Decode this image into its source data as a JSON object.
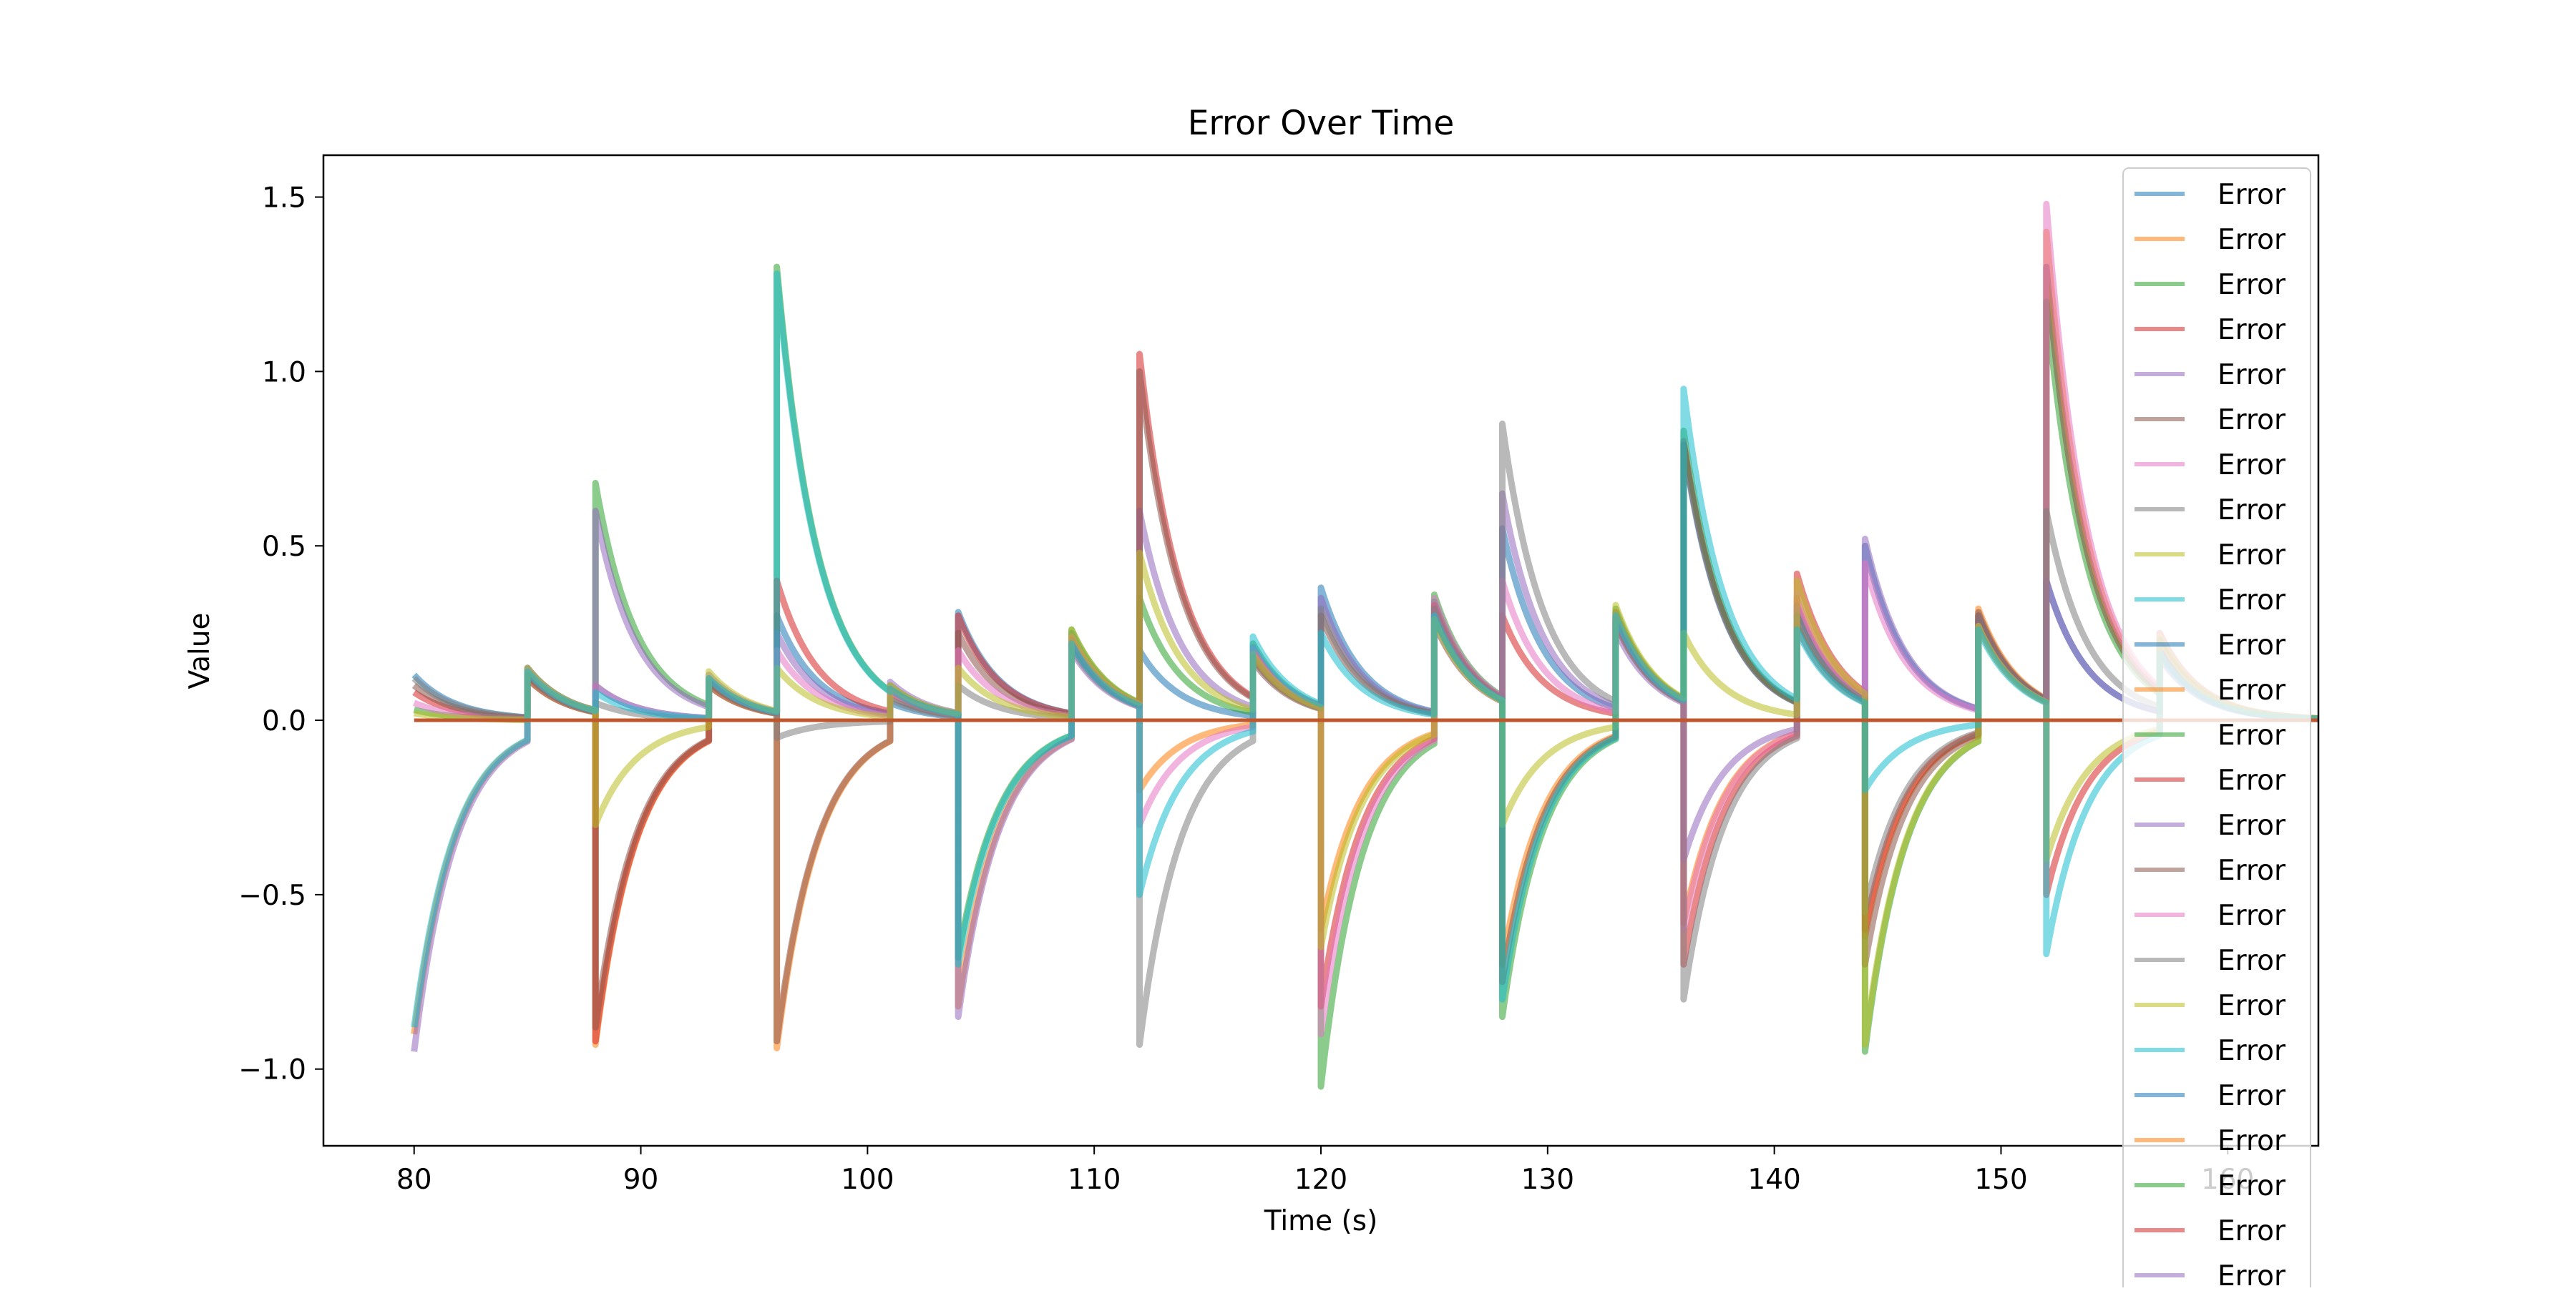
{
  "chart_data": {
    "type": "line",
    "title": "Error Over Time",
    "xlabel": "Time (s)",
    "ylabel": "Value",
    "xlim": [
      76,
      164
    ],
    "ylim": [
      -1.22,
      1.62
    ],
    "xticks": [
      80,
      90,
      100,
      110,
      120,
      130,
      140,
      150,
      160
    ],
    "xtick_labels": [
      "80",
      "90",
      "100",
      "110",
      "120",
      "130",
      "140",
      "150",
      "160"
    ],
    "yticks": [
      -1.0,
      -0.5,
      0.0,
      0.5,
      1.0,
      1.5
    ],
    "ytick_labels": [
      "−1.0",
      "−0.5",
      "0.0",
      "0.5",
      "1.0",
      "1.5"
    ],
    "grid": false,
    "legend_position": "top-right",
    "palette": [
      "#1f77b4",
      "#ff7f0e",
      "#2ca02c",
      "#d62728",
      "#9467bd",
      "#8c564b",
      "#e377c2",
      "#7f7f7f",
      "#bcbd22",
      "#17becf"
    ],
    "legend_entries": [
      "Error",
      "Error",
      "Error",
      "Error",
      "Error",
      "Error",
      "Error",
      "Error",
      "Error",
      "Error",
      "Error",
      "Error",
      "Error",
      "Error",
      "Error",
      "Error",
      "Error",
      "Error",
      "Error",
      "Error",
      "Error",
      "Error",
      "Error",
      "Error",
      "Error"
    ],
    "segment_starts": [
      80,
      85,
      88,
      93,
      96,
      101,
      104,
      109,
      112,
      117,
      120,
      125,
      128,
      133,
      136,
      141,
      144,
      149,
      152,
      157
    ],
    "end_time": 164,
    "decay_rate": 0.55,
    "series": [
      {
        "jumps": [
          0.13,
          0.15,
          0.1,
          0.12,
          0.3,
          0.05,
          0.31,
          0.25,
          0.2,
          0.2,
          0.38,
          0.34,
          0.55,
          0.3,
          0.79,
          0.33,
          0.5,
          0.3,
          0.4,
          0.2
        ]
      },
      {
        "jumps": [
          -0.9,
          0.12,
          -0.93,
          0.1,
          -0.94,
          0.08,
          -0.82,
          0.24,
          -0.2,
          0.18,
          -0.6,
          0.3,
          -0.7,
          0.28,
          -0.58,
          0.35,
          -0.62,
          0.32,
          1.4,
          0.2
        ]
      },
      {
        "jumps": [
          0.03,
          0.14,
          0.68,
          0.12,
          1.3,
          0.1,
          -0.68,
          0.26,
          0.35,
          0.22,
          -1.05,
          0.36,
          -0.85,
          0.32,
          0.83,
          0.3,
          -0.95,
          0.28,
          1.2,
          0.22
        ]
      },
      {
        "jumps": [
          0.08,
          0.13,
          -0.92,
          0.11,
          0.4,
          0.09,
          0.3,
          0.22,
          1.05,
          0.19,
          -0.82,
          0.33,
          0.3,
          0.29,
          -0.7,
          0.42,
          -0.6,
          0.3,
          -0.5,
          0.25
        ]
      },
      {
        "jumps": [
          -0.95,
          0.15,
          0.6,
          0.13,
          0.25,
          0.11,
          -0.85,
          0.2,
          0.6,
          0.21,
          0.35,
          0.3,
          0.65,
          0.26,
          -0.4,
          0.32,
          0.52,
          0.29,
          0.4,
          0.18
        ]
      },
      {
        "jumps": [
          0.1,
          0.12,
          -0.88,
          0.1,
          -0.92,
          0.07,
          0.25,
          0.23,
          1.0,
          0.17,
          0.3,
          0.28,
          -0.75,
          0.31,
          0.8,
          0.27,
          -0.7,
          0.31,
          1.3,
          0.23
        ]
      },
      {
        "jumps": [
          0.05,
          0.14,
          0.1,
          0.12,
          0.2,
          0.08,
          0.2,
          0.24,
          -0.3,
          0.2,
          -0.9,
          0.35,
          0.4,
          0.3,
          -0.6,
          0.36,
          0.45,
          0.27,
          1.48,
          0.21
        ]
      },
      {
        "jumps": [
          0.12,
          0.13,
          0.05,
          0.11,
          -0.05,
          0.06,
          0.1,
          0.21,
          -0.93,
          0.18,
          0.32,
          0.32,
          0.85,
          0.28,
          -0.8,
          0.3,
          -0.55,
          0.3,
          0.6,
          0.2
        ]
      },
      {
        "jumps": [
          0.02,
          0.15,
          -0.3,
          0.14,
          0.15,
          0.1,
          0.15,
          0.26,
          0.48,
          0.19,
          -0.65,
          0.29,
          -0.3,
          0.33,
          0.25,
          0.4,
          -0.93,
          0.27,
          -0.4,
          0.24
        ]
      },
      {
        "jumps": [
          -0.88,
          0.14,
          0.08,
          0.12,
          1.28,
          0.09,
          -0.7,
          0.22,
          -0.5,
          0.24,
          0.25,
          0.3,
          -0.8,
          0.3,
          0.95,
          0.26,
          -0.2,
          0.26,
          -0.67,
          0.19
        ]
      }
    ]
  }
}
